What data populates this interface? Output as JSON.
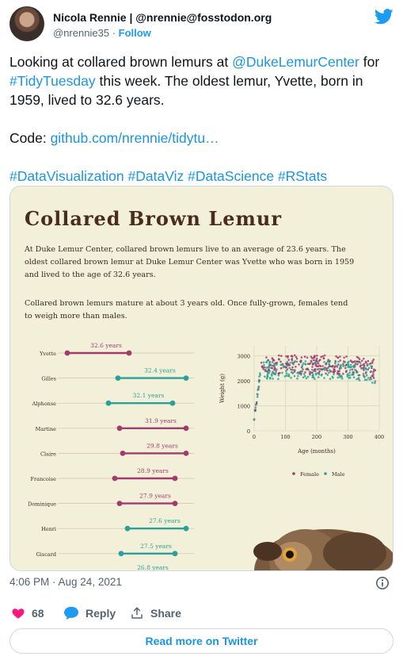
{
  "tweet": {
    "author_name": "Nicola Rennie | @nrennie@fosstodon.org",
    "author_handle": "@nrennie35",
    "separator": "·",
    "follow_label": "Follow",
    "text_part1": "Looking at collared brown lemurs at ",
    "mention": "@DukeLemurCenter",
    "text_part2": " for ",
    "hashtag_main": "#TidyTuesday",
    "text_part3": " this week. The oldest lemur, Yvette, born in 1959, lived to 32.6 years.",
    "code_label": "Code: ",
    "code_link": "github.com/nrennie/tidytu…",
    "hashtags": [
      "#DataVisualization",
      "#DataViz",
      "#DataScience",
      "#RStats"
    ],
    "timestamp": "4:06 PM · Aug 24, 2021",
    "likes": "68",
    "reply_label": "Reply",
    "share_label": "Share",
    "read_more": "Read more on Twitter"
  },
  "media": {
    "title": "Collared Brown Lemur",
    "para1": "At Duke Lemur Center, collared brown lemurs live to an average of 23.6 years. The oldest collared brown lemur at Duke Lemur Center was Yvette who was born in 1959 and lived to the age of 32.6 years.",
    "para2": "Collared brown lemurs mature at about 3 years old. Once fully-grown, females tend to weigh more than males."
  },
  "chart_data": [
    {
      "type": "dumbbell",
      "categories": [
        "Yvette",
        "Gilles",
        "Alphonse",
        "Martine",
        "Claire",
        "Francoise",
        "Dominique",
        "Henri",
        "Giscard"
      ],
      "values": [
        "32.6 years",
        "32.4 years",
        "32.1 years",
        "31.9 years",
        "29.8 years",
        "28.9 years",
        "27.9 years",
        "27.6 years",
        "27.5 years"
      ],
      "sex": [
        "Female",
        "Male",
        "Male",
        "Female",
        "Female",
        "Female",
        "Female",
        "Male",
        "Male"
      ],
      "partial_label": "26.8 years",
      "colors": {
        "Female": "#a33a6e",
        "Male": "#2aa198"
      }
    },
    {
      "type": "scatter",
      "xlabel": "Age (months)",
      "ylabel": "Weight (g)",
      "xticks": [
        "0",
        "100",
        "200",
        "300",
        "400"
      ],
      "yticks": [
        "0",
        "1000",
        "2000",
        "3000"
      ],
      "xlim": [
        0,
        400
      ],
      "ylim": [
        0,
        3400
      ],
      "legend": [
        "Female",
        "Male"
      ],
      "legend_position": "bottom",
      "colors": {
        "Female": "#a33a6e",
        "Male": "#2aa198"
      }
    }
  ]
}
